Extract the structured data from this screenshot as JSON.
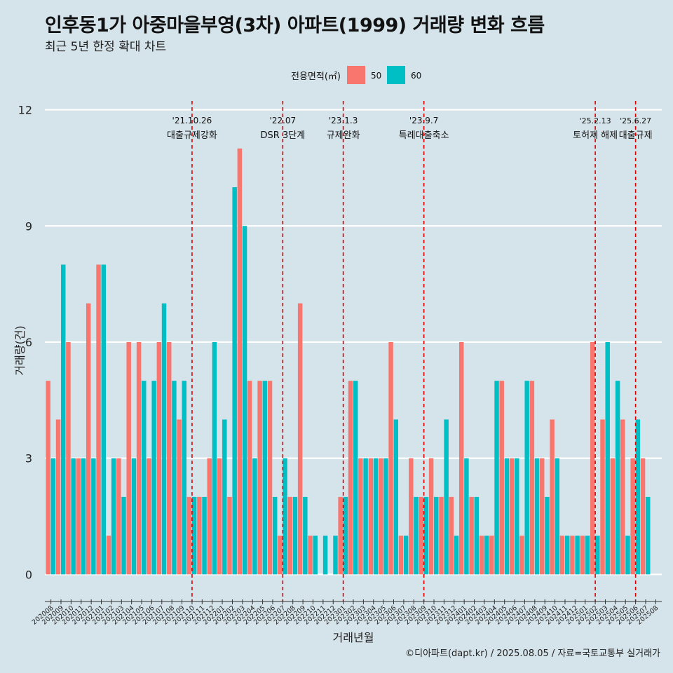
{
  "title": "인후동1가 아중마을부영(3차) 아파트(1999) 거래량 변화 흐름",
  "subtitle": "최근 5년 한정 확대 차트",
  "caption": "©디아파트(dapt.kr) / 2025.08.05 / 자료=국토교통부 실거래가",
  "colors": {
    "s50": "#f8766d",
    "s60": "#00bfc4",
    "background": "#d5e3ea",
    "grid": "#ffffff",
    "event": "#e00000"
  },
  "chart_data": {
    "type": "bar",
    "title": "인후동1가 아중마을부영(3차) 아파트(1999) 거래량 변화 흐름",
    "xlabel": "거래년월",
    "ylabel": "거래량(건)",
    "ylim": [
      -0.7,
      12.3
    ],
    "yticks": [
      0,
      3,
      6,
      9,
      12
    ],
    "legend": {
      "title": "전용면적(㎡)",
      "position": "top"
    },
    "categories": [
      "202008",
      "202009",
      "202010",
      "202011",
      "202012",
      "202101",
      "202102",
      "202103",
      "202104",
      "202105",
      "202106",
      "202107",
      "202108",
      "202109",
      "202110",
      "202111",
      "202112",
      "202201",
      "202202",
      "202203",
      "202204",
      "202205",
      "202206",
      "202207",
      "202208",
      "202209",
      "202210",
      "202211",
      "202212",
      "202301",
      "202302",
      "202303",
      "202304",
      "202305",
      "202306",
      "202307",
      "202308",
      "202309",
      "202310",
      "202311",
      "202312",
      "202401",
      "202402",
      "202403",
      "202404",
      "202405",
      "202406",
      "202407",
      "202408",
      "202409",
      "202410",
      "202411",
      "202412",
      "202501",
      "202502",
      "202503",
      "202504",
      "202505",
      "202506",
      "202507",
      "202508"
    ],
    "series": [
      {
        "name": "50",
        "values": [
          5,
          4,
          6,
          3,
          7,
          8,
          1,
          3,
          6,
          6,
          3,
          6,
          6,
          4,
          2,
          2,
          3,
          3,
          2,
          11,
          5,
          5,
          5,
          1,
          2,
          7,
          1,
          0,
          0,
          2,
          5,
          3,
          3,
          3,
          6,
          1,
          3,
          2,
          3,
          2,
          2,
          6,
          2,
          1,
          1,
          5,
          3,
          1,
          5,
          3,
          4,
          1,
          1,
          1,
          6,
          4,
          3,
          4,
          3,
          3,
          0
        ]
      },
      {
        "name": "60",
        "values": [
          3,
          8,
          3,
          3,
          3,
          8,
          3,
          2,
          3,
          5,
          5,
          7,
          5,
          5,
          2,
          2,
          6,
          4,
          10,
          9,
          3,
          5,
          2,
          3,
          2,
          2,
          1,
          1,
          1,
          2,
          5,
          3,
          3,
          3,
          4,
          1,
          2,
          2,
          2,
          4,
          1,
          3,
          2,
          1,
          5,
          3,
          3,
          5,
          3,
          2,
          3,
          1,
          1,
          1,
          1,
          6,
          5,
          1,
          4,
          2,
          0
        ]
      }
    ],
    "events": [
      {
        "date": "'21.10.26",
        "label": "대출규제강화",
        "month": "202110"
      },
      {
        "date": "'22.07",
        "label": "DSR 3단계",
        "month": "202207"
      },
      {
        "date": "'23.1.3",
        "label": "규제완화",
        "month": "202301"
      },
      {
        "date": "'23.9.7",
        "label": "특례대출축소",
        "month": "202309"
      },
      {
        "date": "'25.2.13",
        "label": "토허제 해제",
        "month": "202502"
      },
      {
        "date": "'25.6.27",
        "label": "대출규제",
        "month": "202506"
      }
    ]
  }
}
